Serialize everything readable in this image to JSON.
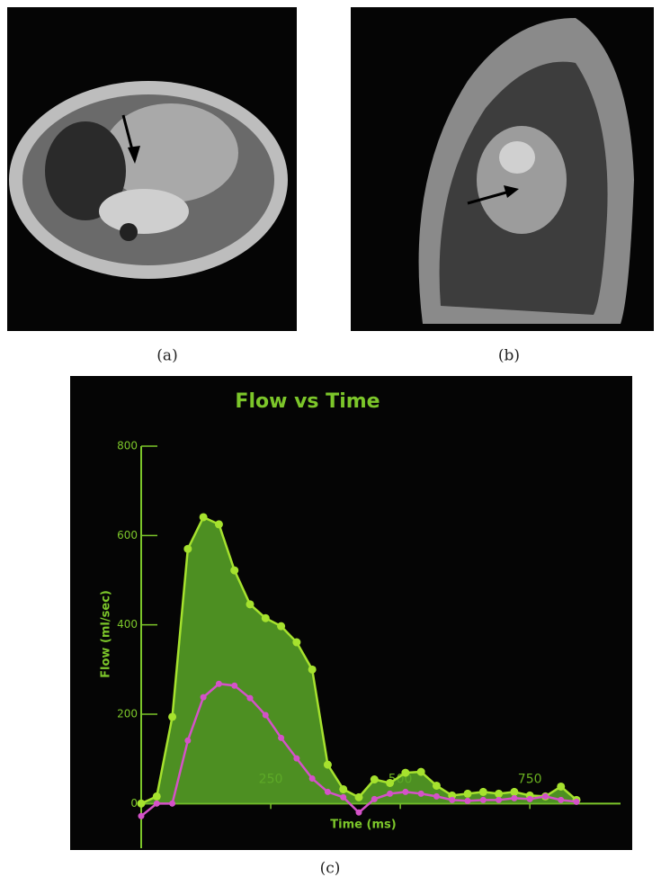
{
  "panel_labels": [
    "(a)",
    "(b)",
    "(c)"
  ],
  "chart_data": {
    "type": "line",
    "title": "Flow vs Time",
    "x_label": "Time (ms)",
    "y_label": "Flow (ml/sec)",
    "x": [
      0,
      30,
      60,
      90,
      120,
      150,
      180,
      210,
      240,
      270,
      300,
      330,
      360,
      390,
      420,
      450,
      480,
      510,
      540,
      570,
      600,
      630,
      660,
      690,
      720,
      750,
      780,
      810,
      840
    ],
    "series": [
      {
        "color": "#a6e22e",
        "values": [
          0,
          16,
          194,
          570,
          641,
          625,
          522,
          446,
          415,
          397,
          361,
          300,
          87,
          32,
          14,
          54,
          46,
          69,
          71,
          40,
          18,
          22,
          26,
          22,
          26,
          18,
          16,
          38,
          8
        ]
      },
      {
        "color": "#d452c8",
        "values": [
          -28,
          0,
          0,
          141,
          238,
          268,
          264,
          236,
          198,
          147,
          101,
          56,
          26,
          14,
          -20,
          10,
          22,
          26,
          22,
          16,
          8,
          6,
          8,
          8,
          12,
          10,
          16,
          8,
          4
        ]
      }
    ],
    "xlim": [
      0,
      925
    ],
    "ylim": [
      -100,
      800
    ],
    "xticks": [
      250,
      500,
      750
    ],
    "yticks": [
      0,
      200,
      400,
      600,
      800
    ]
  }
}
